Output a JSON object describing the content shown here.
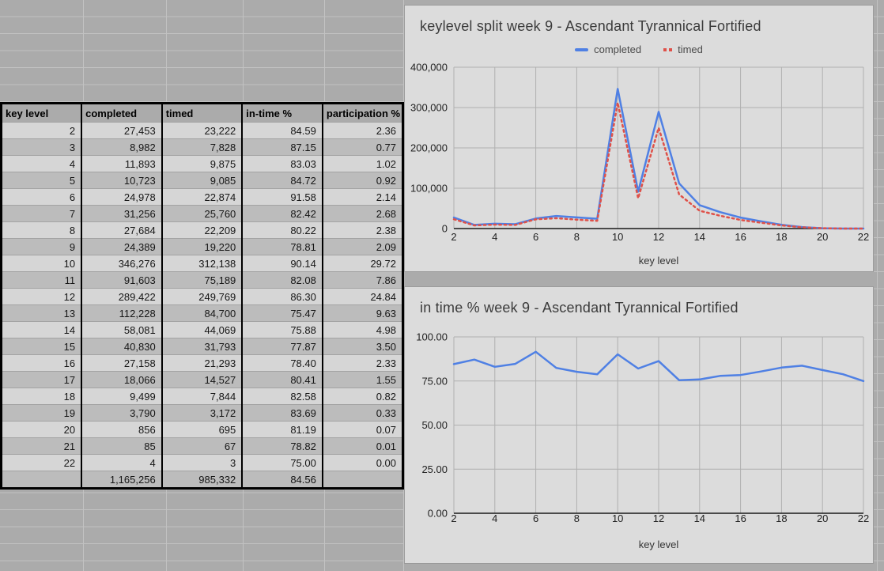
{
  "table": {
    "headers": [
      "key level",
      "completed",
      "timed",
      "in-time %",
      "participation %"
    ],
    "rows": [
      [
        "2",
        "27,453",
        "23,222",
        "84.59",
        "2.36"
      ],
      [
        "3",
        "8,982",
        "7,828",
        "87.15",
        "0.77"
      ],
      [
        "4",
        "11,893",
        "9,875",
        "83.03",
        "1.02"
      ],
      [
        "5",
        "10,723",
        "9,085",
        "84.72",
        "0.92"
      ],
      [
        "6",
        "24,978",
        "22,874",
        "91.58",
        "2.14"
      ],
      [
        "7",
        "31,256",
        "25,760",
        "82.42",
        "2.68"
      ],
      [
        "8",
        "27,684",
        "22,209",
        "80.22",
        "2.38"
      ],
      [
        "9",
        "24,389",
        "19,220",
        "78.81",
        "2.09"
      ],
      [
        "10",
        "346,276",
        "312,138",
        "90.14",
        "29.72"
      ],
      [
        "11",
        "91,603",
        "75,189",
        "82.08",
        "7.86"
      ],
      [
        "12",
        "289,422",
        "249,769",
        "86.30",
        "24.84"
      ],
      [
        "13",
        "112,228",
        "84,700",
        "75.47",
        "9.63"
      ],
      [
        "14",
        "58,081",
        "44,069",
        "75.88",
        "4.98"
      ],
      [
        "15",
        "40,830",
        "31,793",
        "77.87",
        "3.50"
      ],
      [
        "16",
        "27,158",
        "21,293",
        "78.40",
        "2.33"
      ],
      [
        "17",
        "18,066",
        "14,527",
        "80.41",
        "1.55"
      ],
      [
        "18",
        "9,499",
        "7,844",
        "82.58",
        "0.82"
      ],
      [
        "19",
        "3,790",
        "3,172",
        "83.69",
        "0.33"
      ],
      [
        "20",
        "856",
        "695",
        "81.19",
        "0.07"
      ],
      [
        "21",
        "85",
        "67",
        "78.82",
        "0.01"
      ],
      [
        "22",
        "4",
        "3",
        "75.00",
        "0.00"
      ]
    ],
    "total_row": [
      "",
      "1,165,256",
      "985,332",
      "84.56",
      ""
    ]
  },
  "chart_data": [
    {
      "type": "line",
      "title": "keylevel split week 9 - Ascendant Tyrannical Fortified",
      "xlabel": "key level",
      "ylabel": "",
      "x": [
        2,
        3,
        4,
        5,
        6,
        7,
        8,
        9,
        10,
        11,
        12,
        13,
        14,
        15,
        16,
        17,
        18,
        19,
        20,
        21,
        22
      ],
      "series": [
        {
          "name": "completed",
          "color": "#4f80e4",
          "style": "solid",
          "values": [
            27453,
            8982,
            11893,
            10723,
            24978,
            31256,
            27684,
            24389,
            346276,
            91603,
            289422,
            112228,
            58081,
            40830,
            27158,
            18066,
            9499,
            3790,
            856,
            85,
            4
          ]
        },
        {
          "name": "timed",
          "color": "#df5149",
          "style": "dotted",
          "values": [
            23222,
            7828,
            9875,
            9085,
            22874,
            25760,
            22209,
            19220,
            312138,
            75189,
            249769,
            84700,
            44069,
            31793,
            21293,
            14527,
            7844,
            3172,
            695,
            67,
            3
          ]
        }
      ],
      "ylim": [
        0,
        400000
      ],
      "yticks": {
        "values": [
          0,
          100000,
          200000,
          300000,
          400000
        ],
        "labels": [
          "0",
          "100,000",
          "200,000",
          "300,000",
          "400,000"
        ]
      },
      "xticks": {
        "values": [
          2,
          4,
          6,
          8,
          10,
          12,
          14,
          16,
          18,
          20,
          22
        ],
        "labels": [
          "2",
          "4",
          "6",
          "8",
          "10",
          "12",
          "14",
          "16",
          "18",
          "20",
          "22"
        ]
      },
      "legend_position": "top",
      "grid": true
    },
    {
      "type": "line",
      "title": "in time % week 9 - Ascendant Tyrannical Fortified",
      "xlabel": "key level",
      "ylabel": "",
      "x": [
        2,
        3,
        4,
        5,
        6,
        7,
        8,
        9,
        10,
        11,
        12,
        13,
        14,
        15,
        16,
        17,
        18,
        19,
        20,
        21,
        22
      ],
      "series": [
        {
          "name": "in-time %",
          "color": "#4f80e4",
          "style": "solid",
          "values": [
            84.59,
            87.15,
            83.03,
            84.72,
            91.58,
            82.42,
            80.22,
            78.81,
            90.14,
            82.08,
            86.3,
            75.47,
            75.88,
            77.87,
            78.4,
            80.41,
            82.58,
            83.69,
            81.19,
            78.82,
            75.0
          ]
        }
      ],
      "ylim": [
        0,
        100
      ],
      "yticks": {
        "values": [
          0,
          25,
          50,
          75,
          100
        ],
        "labels": [
          "0.00",
          "25.00",
          "50.00",
          "75.00",
          "100.00"
        ]
      },
      "xticks": {
        "values": [
          2,
          4,
          6,
          8,
          10,
          12,
          14,
          16,
          18,
          20,
          22
        ],
        "labels": [
          "2",
          "4",
          "6",
          "8",
          "10",
          "12",
          "14",
          "16",
          "18",
          "20",
          "22"
        ]
      },
      "legend_position": "none",
      "grid": true
    }
  ],
  "colors": {
    "sheet_background": "#ababab",
    "sheet_gridline": "#c2c2c2",
    "chart_background": "#dcdcdc",
    "chart_gridline": "#b0b0b0",
    "row_light": "#d6d6d6",
    "row_dark": "#bcbcbc",
    "series_completed": "#4f80e4",
    "series_timed": "#df5149"
  }
}
